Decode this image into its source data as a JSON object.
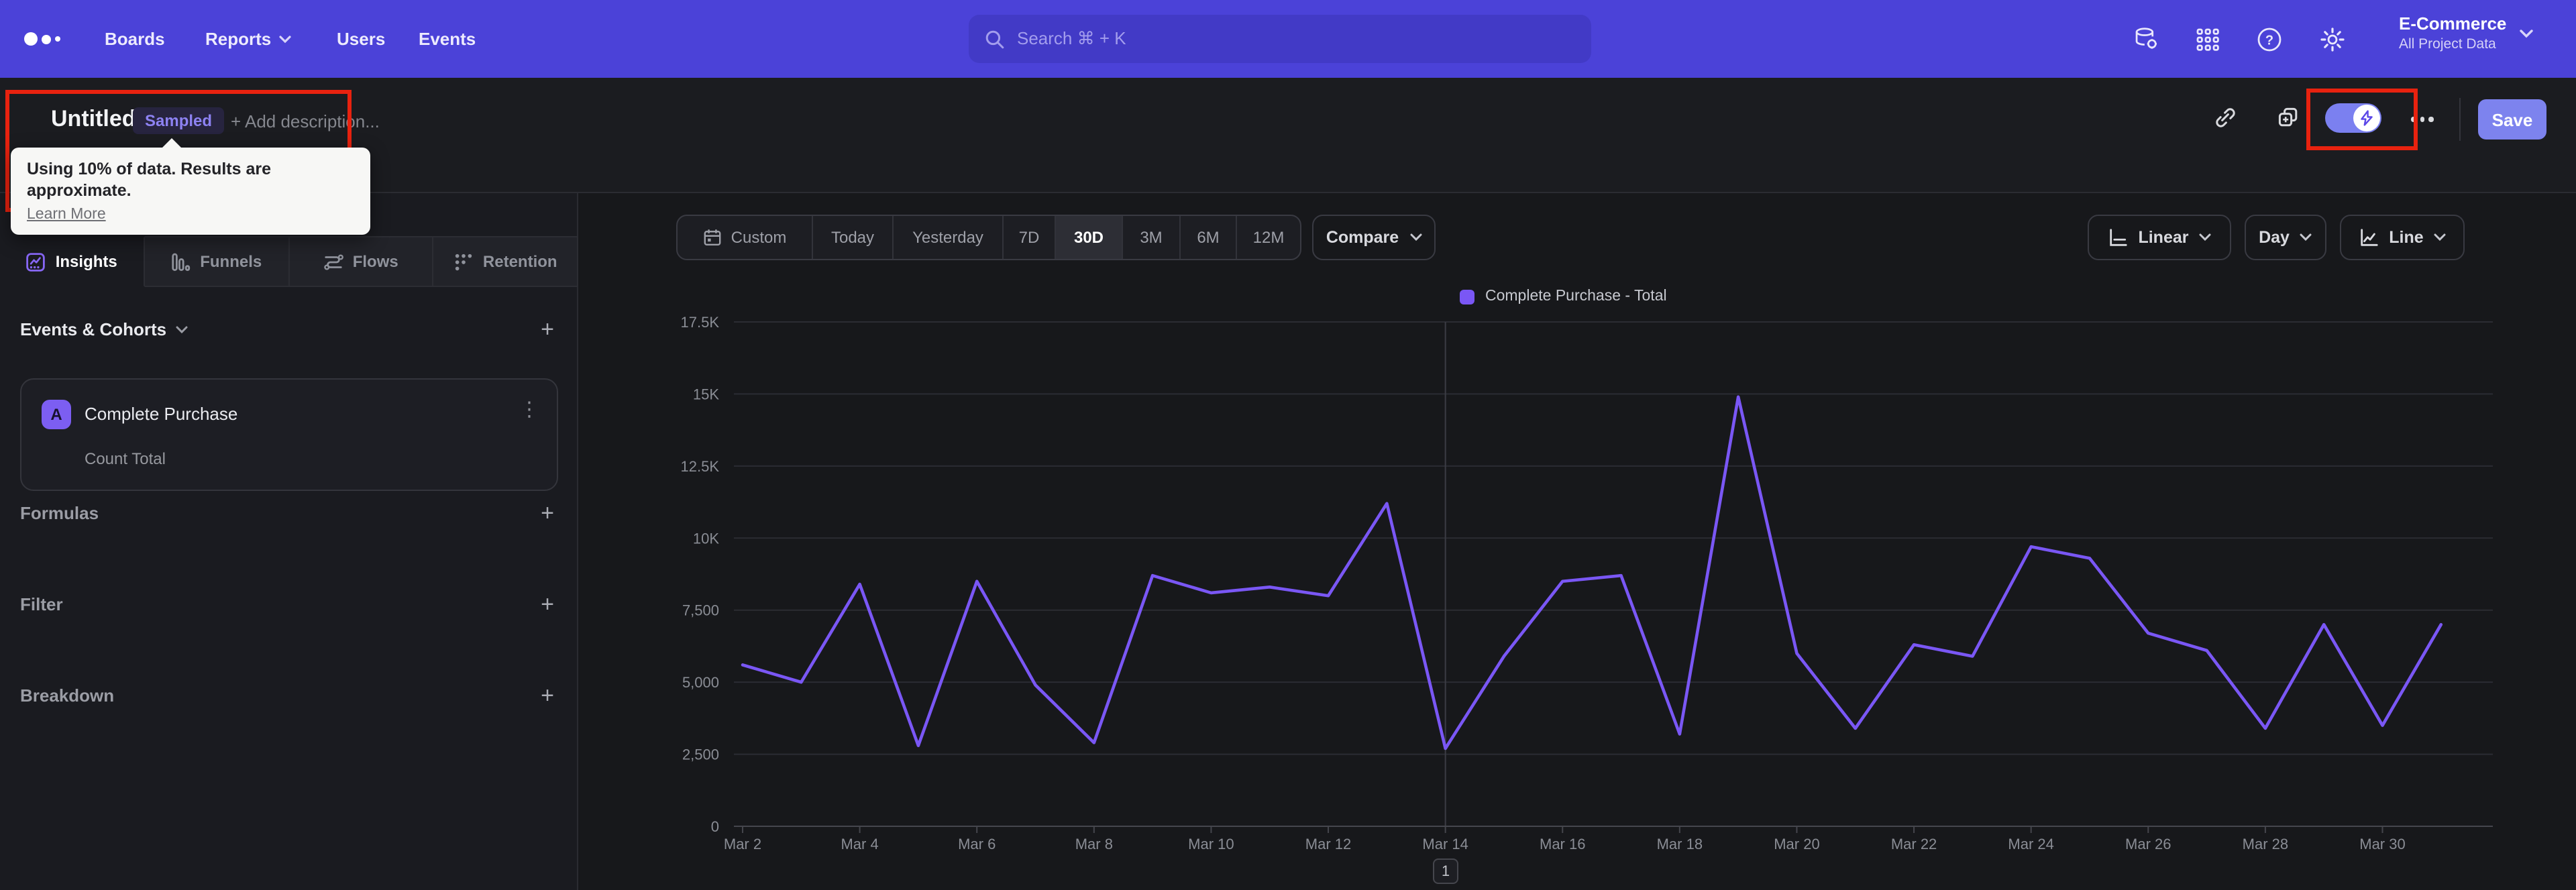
{
  "nav": {
    "items": [
      {
        "label": "Boards",
        "has_dropdown": false
      },
      {
        "label": "Reports",
        "has_dropdown": true
      },
      {
        "label": "Users",
        "has_dropdown": false
      },
      {
        "label": "Events",
        "has_dropdown": false
      }
    ],
    "search": {
      "placeholder": "Search  ⌘ + K"
    },
    "icons": [
      "data-settings-icon",
      "apps-grid-icon",
      "help-icon",
      "settings-gear-icon"
    ],
    "project": {
      "name": "E-Commerce",
      "scope": "All Project Data"
    }
  },
  "header": {
    "title": "Untitled",
    "badge": "Sampled",
    "add_description": "+ Add description...",
    "tooltip": {
      "text": "Using 10% of data. Results are approximate.",
      "link": "Learn More"
    },
    "icons": [
      "link-icon",
      "copy-icon",
      "sampling-toggle-on",
      "more-icon"
    ],
    "save_label": "Save"
  },
  "sidebar": {
    "tabs": [
      {
        "label": "Insights",
        "active": true
      },
      {
        "label": "Funnels",
        "active": false
      },
      {
        "label": "Flows",
        "active": false
      },
      {
        "label": "Retention",
        "active": false
      }
    ],
    "events_section": {
      "label": "Events & Cohorts",
      "event": {
        "letter": "A",
        "name": "Complete Purchase",
        "metric": "Count Total"
      }
    },
    "sections": [
      {
        "label": "Formulas"
      },
      {
        "label": "Filter"
      },
      {
        "label": "Breakdown"
      }
    ]
  },
  "controls": {
    "ranges": [
      {
        "label": "Custom",
        "active": false
      },
      {
        "label": "Today",
        "active": false
      },
      {
        "label": "Yesterday",
        "active": false
      },
      {
        "label": "7D",
        "active": false
      },
      {
        "label": "30D",
        "active": true
      },
      {
        "label": "3M",
        "active": false
      },
      {
        "label": "6M",
        "active": false
      },
      {
        "label": "12M",
        "active": false
      }
    ],
    "compare": "Compare",
    "scale": "Linear",
    "interval": "Day",
    "chart_type": "Line"
  },
  "pagination": {
    "page": "1"
  },
  "annotations": {
    "box_color": "#e8220f",
    "count": 2
  },
  "colors": {
    "accent": "#7a57f5",
    "nav": "#4b42d8",
    "save": "#7d83ee",
    "badge_text": "#8d82f2"
  },
  "chart_data": {
    "type": "line",
    "title": "",
    "xlabel": "",
    "ylabel": "",
    "ylim": [
      0,
      17500
    ],
    "grid": true,
    "legend_position": "top-center",
    "y_ticks": [
      0,
      2500,
      5000,
      7500,
      10000,
      12500,
      15000,
      17500
    ],
    "y_tick_labels": [
      "0",
      "2,500",
      "5,000",
      "7,500",
      "10K",
      "12.5K",
      "15K",
      "17.5K"
    ],
    "x_tick_labels": [
      "Mar 2",
      "Mar 4",
      "Mar 6",
      "Mar 8",
      "Mar 10",
      "Mar 12",
      "Mar 14",
      "Mar 16",
      "Mar 18",
      "Mar 20",
      "Mar 22",
      "Mar 24",
      "Mar 26",
      "Mar 28",
      "Mar 30"
    ],
    "highlight_x": "Mar 14",
    "series": [
      {
        "name": "Complete Purchase - Total",
        "color": "#7a57f5",
        "x": [
          "Mar 2",
          "Mar 3",
          "Mar 4",
          "Mar 5",
          "Mar 6",
          "Mar 7",
          "Mar 8",
          "Mar 9",
          "Mar 10",
          "Mar 11",
          "Mar 12",
          "Mar 13",
          "Mar 14",
          "Mar 15",
          "Mar 16",
          "Mar 17",
          "Mar 18",
          "Mar 19",
          "Mar 20",
          "Mar 21",
          "Mar 22",
          "Mar 23",
          "Mar 24",
          "Mar 25",
          "Mar 26",
          "Mar 27",
          "Mar 28",
          "Mar 29",
          "Mar 30",
          "Mar 31"
        ],
        "values": [
          5600,
          5000,
          8400,
          2800,
          8500,
          4900,
          2900,
          8700,
          8100,
          8300,
          8000,
          11200,
          2700,
          5900,
          8500,
          8700,
          3200,
          14900,
          6000,
          3400,
          6300,
          5900,
          9700,
          9300,
          6700,
          6100,
          3400,
          7000,
          3500,
          7000
        ]
      }
    ]
  }
}
